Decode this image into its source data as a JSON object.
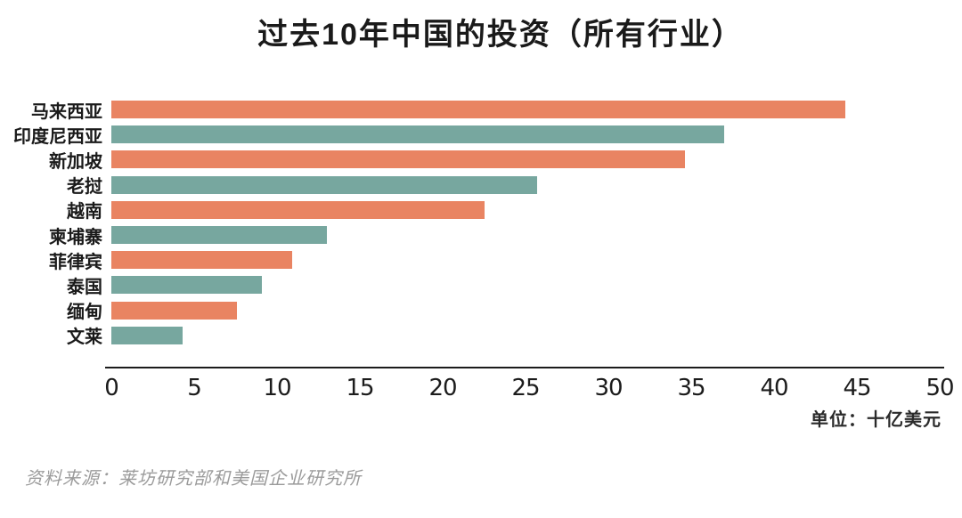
{
  "title": "过去10年中国的投资（所有行业）",
  "unit_note": "单位：十亿美元",
  "source": "资料来源：莱坊研究部和美国企业研究所",
  "colors": {
    "bar_alternate": [
      "#E98462",
      "#77A79F"
    ],
    "title_text": "#1a1a1a",
    "axis_text": "#1c1c1c",
    "source_text": "#9b9b9b"
  },
  "chart_data": {
    "type": "bar",
    "orientation": "horizontal",
    "title": "过去10年中国的投资（所有行业）",
    "unit": "十亿美元",
    "categories": [
      "马来西亚",
      "印度尼西亚",
      "新加坡",
      "老挝",
      "越南",
      "柬埔寨",
      "菲律宾",
      "泰国",
      "缅甸",
      "文莱"
    ],
    "values": [
      44.3,
      37.0,
      34.6,
      25.7,
      22.5,
      13.0,
      10.9,
      9.1,
      7.6,
      4.3
    ],
    "xlim": [
      0,
      50
    ],
    "x_ticks": [
      0,
      5,
      10,
      15,
      20,
      25,
      30,
      35,
      40,
      45,
      50
    ],
    "grid": false,
    "legend": false
  }
}
